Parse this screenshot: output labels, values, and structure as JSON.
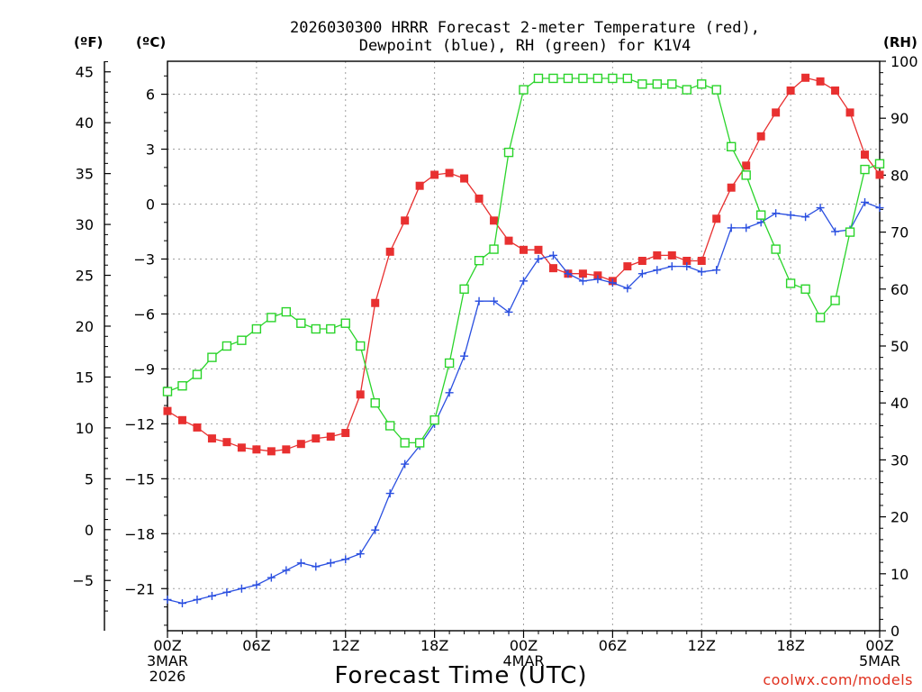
{
  "chart_data": {
    "type": "line",
    "title_line1": "2026030300 HRRR Forecast 2-meter Temperature (red),",
    "title_line2": "Dewpoint (blue), RH (green) for K1V4",
    "xlabel": "Forecast Time (UTC)",
    "unit_left_f": "(ºF)",
    "unit_left_c": "(ºC)",
    "unit_right": "(RH)",
    "credit": "coolwx.com/models",
    "x_range_hours": [
      0,
      48
    ],
    "x_ticks": [
      {
        "hour": 0,
        "lines": [
          "00Z",
          "3MAR",
          "2026"
        ]
      },
      {
        "hour": 6,
        "lines": [
          "06Z"
        ]
      },
      {
        "hour": 12,
        "lines": [
          "12Z"
        ]
      },
      {
        "hour": 18,
        "lines": [
          "18Z"
        ]
      },
      {
        "hour": 24,
        "lines": [
          "00Z",
          "4MAR"
        ]
      },
      {
        "hour": 30,
        "lines": [
          "06Z"
        ]
      },
      {
        "hour": 36,
        "lines": [
          "12Z"
        ]
      },
      {
        "hour": 42,
        "lines": [
          "18Z"
        ]
      },
      {
        "hour": 48,
        "lines": [
          "00Z",
          "5MAR"
        ]
      }
    ],
    "y_celsius": {
      "range": [
        -23.3,
        7.8
      ],
      "ticks": [
        "−21",
        "−18",
        "−15",
        "−12",
        "−9",
        "−6",
        "−3",
        "0",
        "3",
        "6"
      ],
      "tick_values": [
        -21,
        -18,
        -15,
        -12,
        -9,
        -6,
        -3,
        0,
        3,
        6
      ]
    },
    "y_fahrenheit": {
      "ticks": [
        "−5",
        "0",
        "5",
        "10",
        "15",
        "20",
        "25",
        "30",
        "35",
        "40",
        "45"
      ],
      "tick_values": [
        -5,
        0,
        5,
        10,
        15,
        20,
        25,
        30,
        35,
        40,
        45
      ]
    },
    "y_rh": {
      "range": [
        0,
        100
      ],
      "ticks": [
        "0",
        "10",
        "20",
        "30",
        "40",
        "50",
        "60",
        "70",
        "80",
        "90",
        "100"
      ],
      "tick_values": [
        0,
        10,
        20,
        30,
        40,
        50,
        60,
        70,
        80,
        90,
        100
      ]
    },
    "grid": true,
    "series": [
      {
        "name": "Temperature",
        "units": "C",
        "color": "#e83030",
        "marker": "filled-square",
        "values": [
          -11.3,
          -11.8,
          -12.2,
          -12.8,
          -13.0,
          -13.3,
          -13.4,
          -13.5,
          -13.4,
          -13.1,
          -12.8,
          -12.7,
          -12.5,
          -10.4,
          -5.4,
          -2.6,
          -0.9,
          1.0,
          1.6,
          1.7,
          1.4,
          0.3,
          -0.9,
          -2.0,
          -2.5,
          -2.5,
          -3.5,
          -3.8,
          -3.8,
          -3.9,
          -4.2,
          -3.4,
          -3.1,
          -2.8,
          -2.8,
          -3.1,
          -3.1,
          -0.8,
          0.9,
          2.1,
          3.7,
          5.0,
          6.2,
          6.9,
          6.7,
          6.2,
          5.0,
          2.7,
          1.6
        ]
      },
      {
        "name": "Dewpoint",
        "units": "C",
        "color": "#2a4fe0",
        "marker": "plus",
        "values": [
          -21.6,
          -21.8,
          -21.6,
          -21.4,
          -21.2,
          -21.0,
          -20.8,
          -20.4,
          -20.0,
          -19.6,
          -19.8,
          -19.6,
          -19.4,
          -19.1,
          -17.8,
          -15.8,
          -14.2,
          -13.2,
          -12.0,
          -10.3,
          -8.3,
          -5.3,
          -5.3,
          -5.9,
          -4.2,
          -3.0,
          -2.8,
          -3.8,
          -4.2,
          -4.1,
          -4.3,
          -4.6,
          -3.8,
          -3.6,
          -3.4,
          -3.4,
          -3.7,
          -3.6,
          -1.3,
          -1.3,
          -1.0,
          -0.5,
          -0.6,
          -0.7,
          -0.2,
          -1.5,
          -1.4,
          0.1,
          -0.2
        ]
      },
      {
        "name": "RH",
        "units": "%",
        "color": "#2ad42a",
        "marker": "open-square",
        "values": [
          42,
          43,
          45,
          48,
          50,
          51,
          53,
          55,
          56,
          54,
          53,
          53,
          54,
          50,
          40,
          36,
          33,
          33,
          37,
          47,
          60,
          65,
          67,
          84,
          95,
          97,
          97,
          97,
          97,
          97,
          97,
          97,
          96,
          96,
          96,
          95,
          96,
          95,
          85,
          80,
          73,
          67,
          61,
          60,
          55,
          58,
          70,
          81,
          82
        ]
      }
    ]
  }
}
